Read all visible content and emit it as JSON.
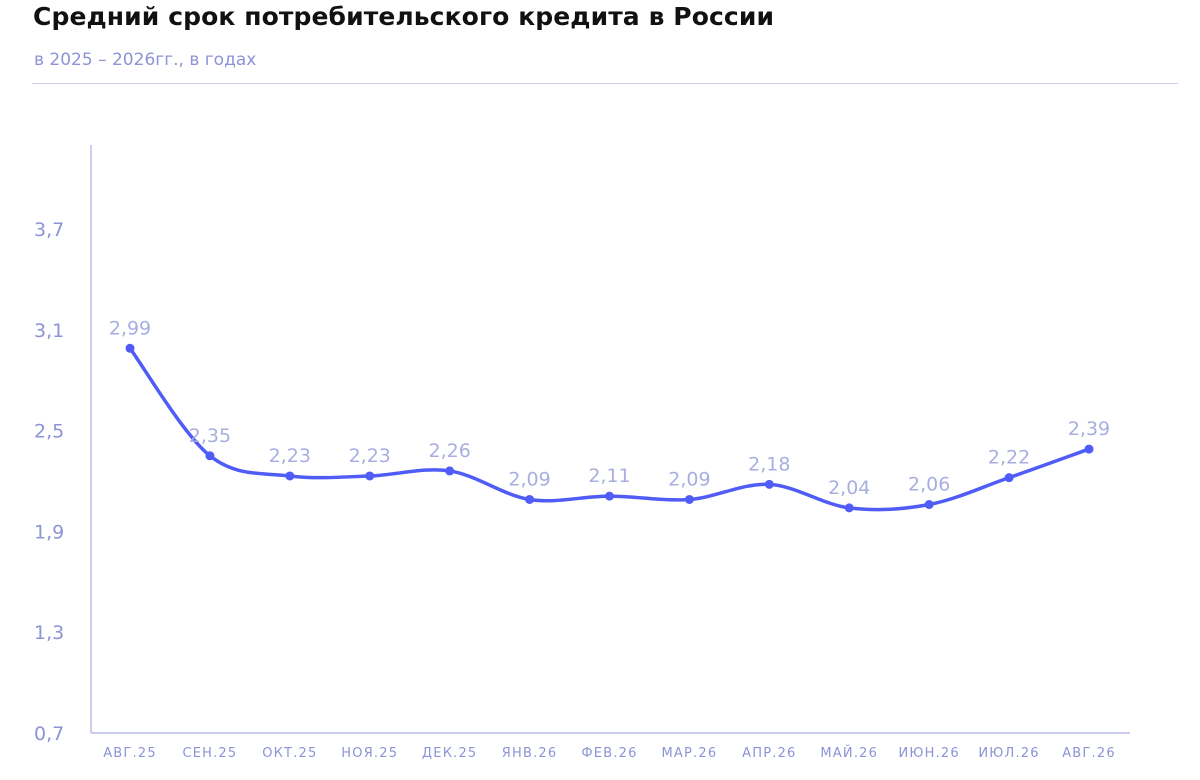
{
  "colors": {
    "line": "#4F5CF5",
    "axis": "#A9AEE0",
    "tick_text": "#8C93D6",
    "data_label": "#A9AEE0",
    "subtitle": "#8C93D6",
    "divider": "#C9CCEB"
  },
  "chart_data": {
    "type": "line",
    "title": "Средний срок потребительского кредита в России",
    "subtitle": "в 2025 – 2026гг., в годах",
    "xlabel": "",
    "ylabel": "",
    "categories": [
      "АВГ.25",
      "СЕН.25",
      "ОКТ.25",
      "НОЯ.25",
      "ДЕК.25",
      "ЯНВ.26",
      "ФЕВ.26",
      "МАР.26",
      "АПР.26",
      "МАЙ.26",
      "ИЮН.26",
      "ИЮЛ.26",
      "АВГ.26"
    ],
    "series": [
      {
        "values": [
          2.99,
          2.35,
          2.23,
          2.23,
          2.26,
          2.09,
          2.11,
          2.09,
          2.18,
          2.04,
          2.06,
          2.22,
          2.39
        ],
        "labels": [
          "2,99",
          "2,35",
          "2,23",
          "2,23",
          "2,26",
          "2,09",
          "2,11",
          "2,09",
          "2,18",
          "2,04",
          "2,06",
          "2,22",
          "2,39"
        ]
      }
    ],
    "yticks": [
      0.7,
      1.3,
      1.9,
      2.5,
      3.1,
      3.7
    ],
    "ytick_labels": [
      "0,7",
      "1,3",
      "1,9",
      "2,5",
      "3,1",
      "3,7"
    ],
    "ylim": [
      0.7,
      4.2
    ],
    "grid": false,
    "legend": "none",
    "smooth": true
  }
}
